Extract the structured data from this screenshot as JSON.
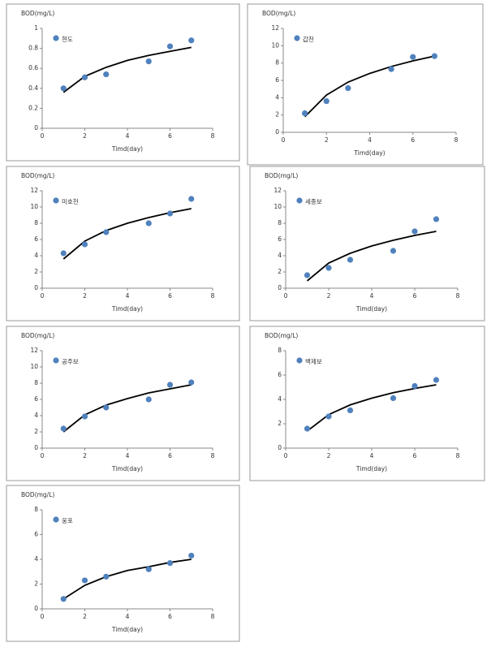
{
  "chart_data": [
    {
      "type": "scatter",
      "ylabel": "BOD(mg/L)",
      "xlabel": "Timd(day)",
      "xlim": [
        0,
        8
      ],
      "xticks": [
        0,
        2,
        4,
        6,
        8
      ],
      "ylim": [
        0,
        1
      ],
      "yticks": [
        0,
        0.2,
        0.4,
        0.6,
        0.8,
        1
      ],
      "series": [
        {
          "name": "현도",
          "color": "#4f81bd",
          "x": [
            1,
            2,
            3,
            5,
            6,
            7
          ],
          "values": [
            0.4,
            0.51,
            0.54,
            0.67,
            0.82,
            0.88
          ]
        }
      ],
      "trendline": {
        "color": "#000000",
        "x": [
          1,
          2,
          3,
          4,
          5,
          6,
          7
        ],
        "values": [
          0.36,
          0.52,
          0.61,
          0.68,
          0.73,
          0.77,
          0.81
        ]
      }
    },
    {
      "type": "scatter",
      "ylabel": "BOD(mg/L)",
      "xlabel": "Timd(day)",
      "xlim": [
        0,
        8
      ],
      "xticks": [
        0,
        2,
        4,
        6,
        8
      ],
      "ylim": [
        0,
        12
      ],
      "yticks": [
        0,
        2,
        4,
        6,
        8,
        10,
        12
      ],
      "series": [
        {
          "name": "갑천",
          "color": "#4f81bd",
          "x": [
            1,
            2,
            3,
            5,
            6,
            7
          ],
          "values": [
            2.2,
            3.6,
            5.1,
            7.3,
            8.7,
            8.8
          ]
        }
      ],
      "trendline": {
        "color": "#000000",
        "x": [
          1,
          2,
          3,
          4,
          5,
          6,
          7
        ],
        "values": [
          1.8,
          4.3,
          5.8,
          6.8,
          7.6,
          8.25,
          8.8
        ]
      }
    },
    {
      "type": "scatter",
      "ylabel": "BOD(mg/L)",
      "xlabel": "Timd(day)",
      "xlim": [
        0,
        8
      ],
      "xticks": [
        0,
        2,
        4,
        6,
        8
      ],
      "ylim": [
        0,
        12
      ],
      "yticks": [
        0,
        2,
        4,
        6,
        8,
        10,
        12
      ],
      "series": [
        {
          "name": "미호천",
          "color": "#4f81bd",
          "x": [
            1,
            2,
            3,
            5,
            6,
            7
          ],
          "values": [
            4.3,
            5.4,
            6.9,
            8.0,
            9.2,
            11.0
          ]
        }
      ],
      "trendline": {
        "color": "#000000",
        "x": [
          1,
          2,
          3,
          4,
          5,
          6,
          7
        ],
        "values": [
          3.6,
          5.8,
          7.1,
          8.0,
          8.7,
          9.3,
          9.8
        ]
      }
    },
    {
      "type": "scatter",
      "ylabel": "BOD(mg/L)",
      "xlabel": "Timd(day)",
      "xlim": [
        0,
        8
      ],
      "xticks": [
        0,
        2,
        4,
        6,
        8
      ],
      "ylim": [
        0,
        12
      ],
      "yticks": [
        0,
        2,
        4,
        6,
        8,
        10,
        12
      ],
      "series": [
        {
          "name": "세종보",
          "color": "#4f81bd",
          "x": [
            1,
            2,
            3,
            5,
            6,
            7
          ],
          "values": [
            1.6,
            2.5,
            3.5,
            4.6,
            7.0,
            8.5
          ]
        }
      ],
      "trendline": {
        "color": "#000000",
        "x": [
          1,
          2,
          3,
          4,
          5,
          6,
          7
        ],
        "values": [
          0.9,
          3.1,
          4.3,
          5.2,
          5.9,
          6.5,
          7.0
        ]
      }
    },
    {
      "type": "scatter",
      "ylabel": "BOD(mg/L)",
      "xlabel": "Timd(day)",
      "xlim": [
        0,
        8
      ],
      "xticks": [
        0,
        2,
        4,
        6,
        8
      ],
      "ylim": [
        0,
        12
      ],
      "yticks": [
        0,
        2,
        4,
        6,
        8,
        10,
        12
      ],
      "series": [
        {
          "name": "공주보",
          "color": "#4f81bd",
          "x": [
            1,
            2,
            3,
            5,
            6,
            7
          ],
          "values": [
            2.4,
            3.9,
            5.0,
            6.0,
            7.8,
            8.1
          ]
        }
      ],
      "trendline": {
        "color": "#000000",
        "x": [
          1,
          2,
          3,
          4,
          5,
          6,
          7
        ],
        "values": [
          2.0,
          4.1,
          5.3,
          6.1,
          6.8,
          7.3,
          7.8
        ]
      }
    },
    {
      "type": "scatter",
      "ylabel": "BOD(mg/L)",
      "xlabel": "Timd(day)",
      "xlim": [
        0,
        8
      ],
      "xticks": [
        0,
        2,
        4,
        6,
        8
      ],
      "ylim": [
        0,
        8
      ],
      "yticks": [
        0,
        2,
        4,
        6,
        8
      ],
      "series": [
        {
          "name": "백제보",
          "color": "#4f81bd",
          "x": [
            1,
            2,
            3,
            5,
            6,
            7
          ],
          "values": [
            1.6,
            2.6,
            3.1,
            4.1,
            5.1,
            5.6
          ]
        }
      ],
      "trendline": {
        "color": "#000000",
        "x": [
          1,
          2,
          3,
          4,
          5,
          6,
          7
        ],
        "values": [
          1.4,
          2.75,
          3.55,
          4.1,
          4.55,
          4.9,
          5.2
        ]
      }
    },
    {
      "type": "scatter",
      "ylabel": "BOD(mg/L)",
      "xlabel": "Timd(day)",
      "xlim": [
        0,
        8
      ],
      "xticks": [
        0,
        2,
        4,
        6,
        8
      ],
      "ylim": [
        0,
        8
      ],
      "yticks": [
        0,
        2,
        4,
        6,
        8
      ],
      "series": [
        {
          "name": "웅포",
          "color": "#4f81bd",
          "x": [
            1,
            2,
            3,
            5,
            6,
            7
          ],
          "values": [
            0.8,
            2.3,
            2.6,
            3.2,
            3.7,
            4.3
          ]
        }
      ],
      "trendline": {
        "color": "#000000",
        "x": [
          1,
          2,
          3,
          4,
          5,
          6,
          7
        ],
        "values": [
          0.8,
          1.9,
          2.6,
          3.1,
          3.4,
          3.75,
          4.0
        ]
      }
    }
  ]
}
